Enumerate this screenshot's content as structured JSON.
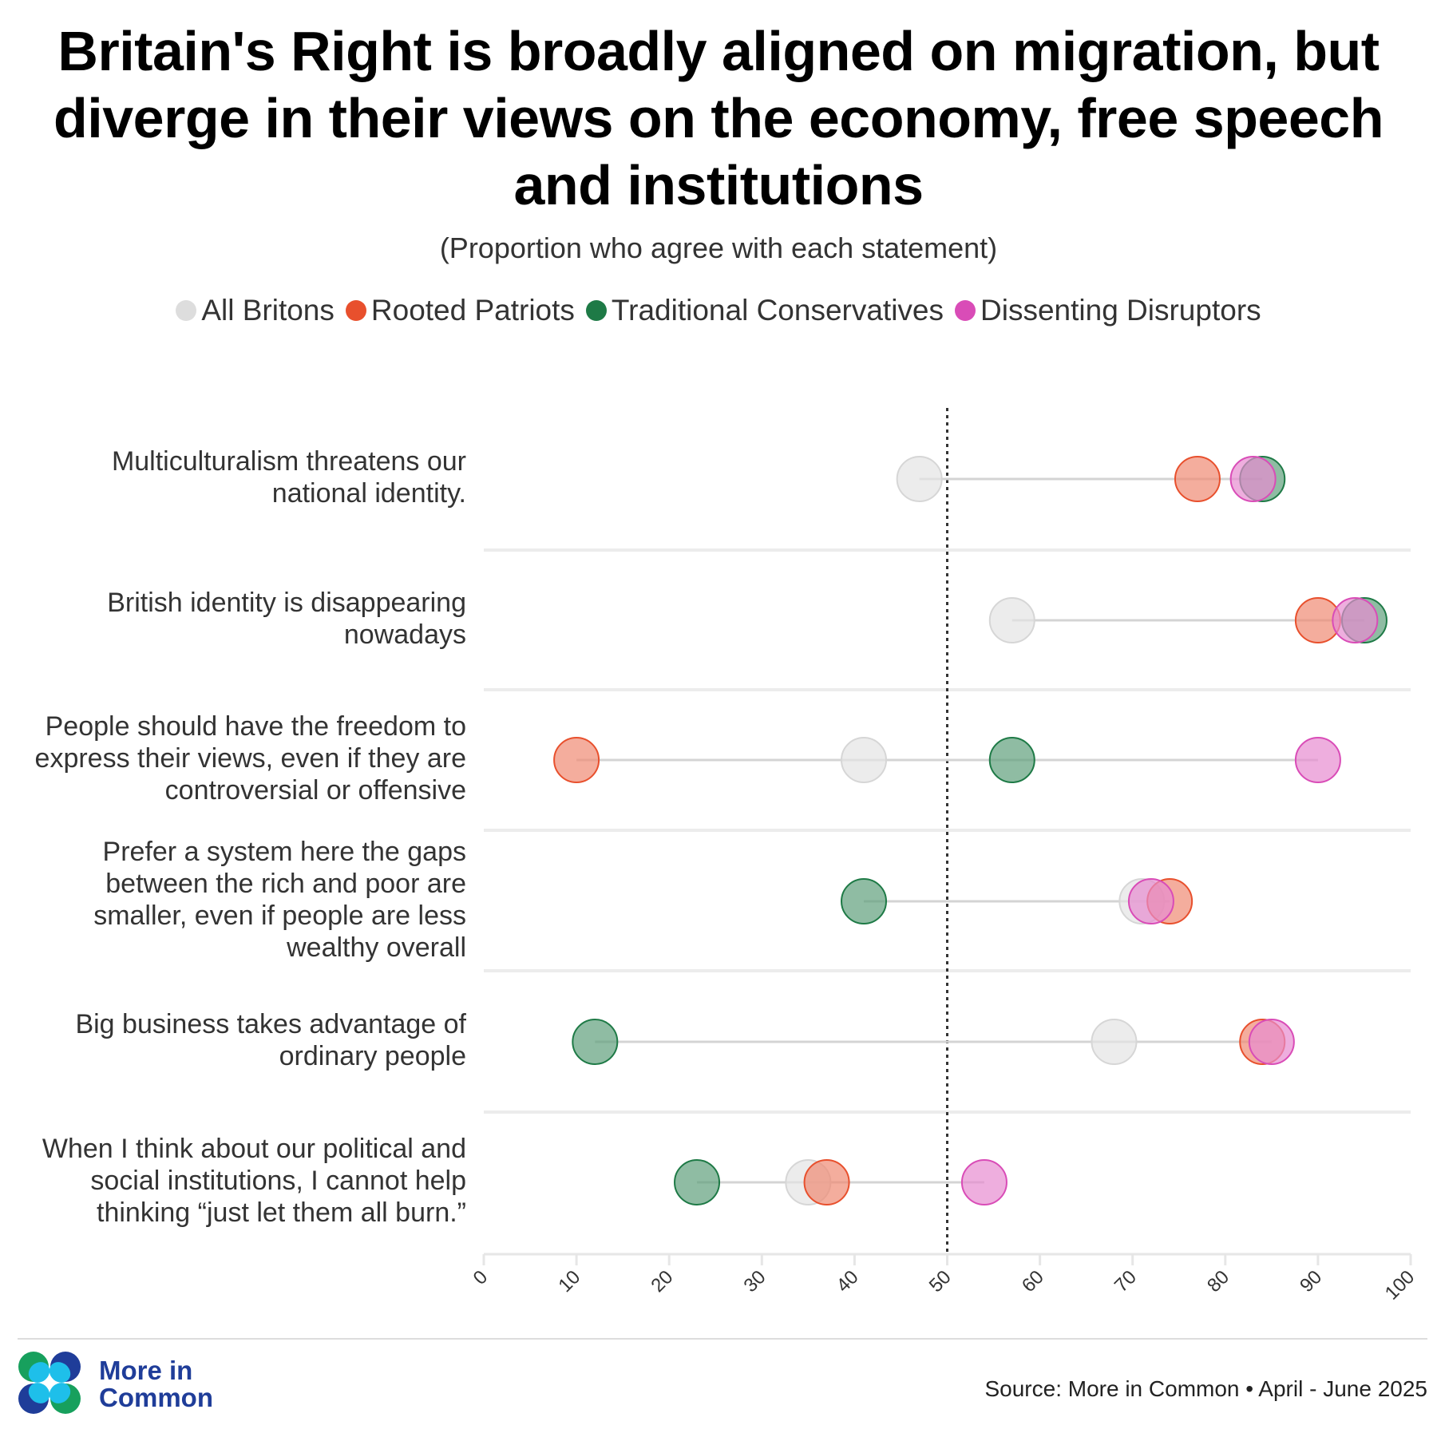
{
  "chart_data": {
    "type": "dumbbell",
    "title": "Britain's Right is broadly aligned on migration, but diverge in their views on the economy, free speech and institutions",
    "subtitle": "(Proportion who agree with each statement)",
    "xlim": [
      0,
      100
    ],
    "xticks": [
      "0",
      "10",
      "20",
      "30",
      "40",
      "50",
      "60",
      "70",
      "80",
      "90",
      "100"
    ],
    "reference_line": 50,
    "legend_placement": "top",
    "series": [
      {
        "name": "All Britons",
        "color": "#e4e4e4",
        "stroke": "#d6d6d6",
        "values": [
          47,
          57,
          41,
          71,
          68,
          35
        ]
      },
      {
        "name": "Rooted Patriots",
        "color": "#ef8a73",
        "stroke": "#e8502d",
        "values": [
          77,
          90,
          10,
          74,
          84,
          37
        ]
      },
      {
        "name": "Traditional Conservatives",
        "color": "#5f9f7c",
        "stroke": "#1e7a46",
        "values": [
          84,
          95,
          57,
          41,
          12,
          23
        ]
      },
      {
        "name": "Dissenting Disruptors",
        "color": "#e78bd0",
        "stroke": "#d94cb7",
        "values": [
          83,
          94,
          90,
          72,
          85,
          54
        ]
      }
    ],
    "categories": [
      "Multiculturalism threatens our national identity.",
      "British identity is disappearing nowadays",
      "People should have the freedom to express their views, even if they are controversial or offensive",
      "Prefer a system here the gaps between the rich and poor are smaller, even if people are less wealthy overall",
      "Big business takes advantage of ordinary people",
      "When I think about our political and social institutions, I cannot help thinking “just let them all burn.”"
    ]
  },
  "legend_colors": [
    "#dddddd",
    "#e8502d",
    "#1e7a46",
    "#d94cb7"
  ],
  "footer": {
    "source": "Source: More in Common • April - June 2025",
    "logo_text": "More in Common",
    "logo_line1": "More in",
    "logo_line2": "Common"
  }
}
